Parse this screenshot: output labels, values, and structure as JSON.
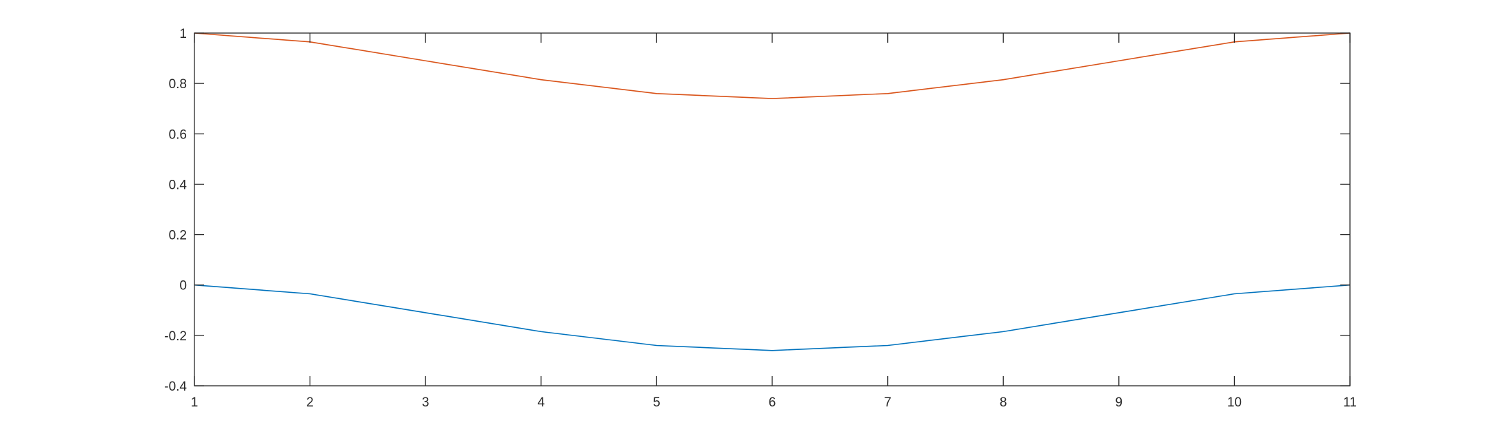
{
  "chart_data": {
    "type": "line",
    "title": "",
    "xlabel": "",
    "ylabel": "",
    "xlim": [
      1,
      11
    ],
    "ylim": [
      -0.4,
      1
    ],
    "grid": false,
    "x_ticks": [
      1,
      2,
      3,
      4,
      5,
      6,
      7,
      8,
      9,
      10,
      11
    ],
    "x_tick_labels": [
      "1",
      "2",
      "3",
      "4",
      "5",
      "6",
      "7",
      "8",
      "9",
      "10",
      "11"
    ],
    "y_ticks": [
      -0.4,
      -0.2,
      0,
      0.2,
      0.4,
      0.6,
      0.8,
      1
    ],
    "y_tick_labels": [
      "-0.4",
      "-0.2",
      "0",
      "0.2",
      "0.4",
      "0.6",
      "0.8",
      "1"
    ],
    "x": [
      1,
      2,
      3,
      4,
      5,
      6,
      7,
      8,
      9,
      10,
      11
    ],
    "series": [
      {
        "color": "#D95319",
        "values": [
          1.0,
          0.965,
          0.89,
          0.815,
          0.76,
          0.74,
          0.76,
          0.815,
          0.89,
          0.965,
          1.0
        ]
      },
      {
        "color": "#0072BD",
        "values": [
          0.0,
          -0.035,
          -0.11,
          -0.185,
          -0.24,
          -0.26,
          -0.24,
          -0.185,
          -0.11,
          -0.035,
          0.0
        ]
      }
    ]
  }
}
